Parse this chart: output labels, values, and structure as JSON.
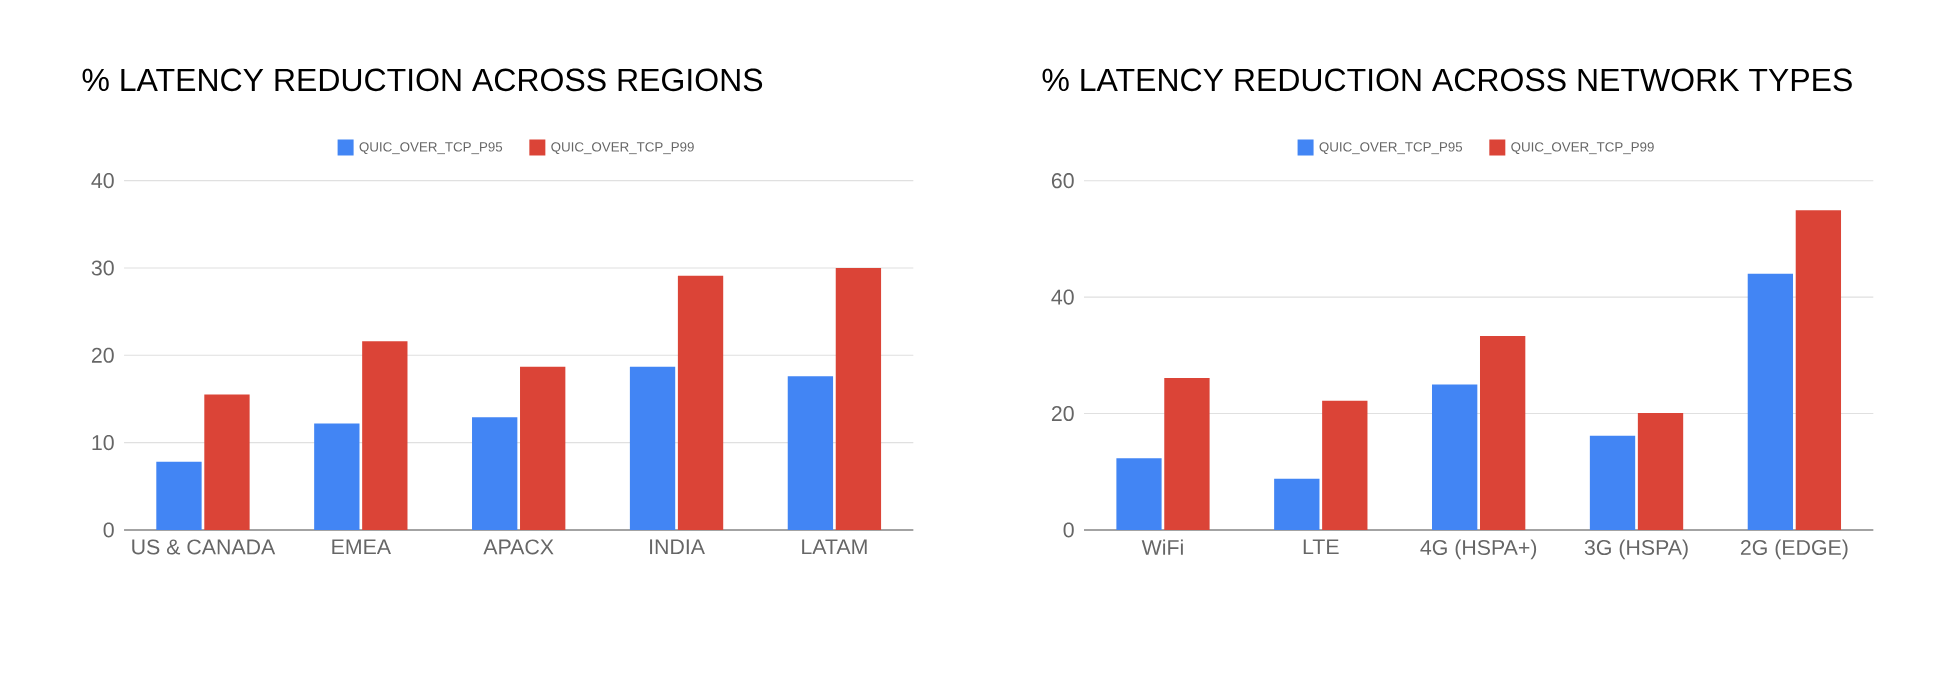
{
  "chart_data": [
    {
      "type": "bar",
      "title": "% LATENCY REDUCTION ACROSS REGIONS",
      "categories": [
        "US & CANADA",
        "EMEA",
        "APACX",
        "INDIA",
        "LATAM"
      ],
      "series": [
        {
          "name": "QUIC_OVER_TCP_P95",
          "color": "#4285f4",
          "values": [
            7.8,
            12.2,
            12.9,
            18.7,
            17.6
          ]
        },
        {
          "name": "QUIC_OVER_TCP_P99",
          "color": "#db4437",
          "values": [
            15.5,
            21.6,
            18.7,
            29.1,
            30.0
          ]
        }
      ],
      "ylim": [
        0,
        40
      ],
      "yticks": [
        0,
        10,
        20,
        30,
        40
      ],
      "grid": "y",
      "legend": "top"
    },
    {
      "type": "bar",
      "title": "% LATENCY REDUCTION ACROSS NETWORK TYPES",
      "categories": [
        "WiFi",
        "LTE",
        "4G (HSPA+)",
        "3G (HSPA)",
        "2G (EDGE)"
      ],
      "series": [
        {
          "name": "QUIC_OVER_TCP_P95",
          "color": "#4285f4",
          "values": [
            12.3,
            8.8,
            25.0,
            16.2,
            44.0
          ]
        },
        {
          "name": "QUIC_OVER_TCP_P99",
          "color": "#db4437",
          "values": [
            26.1,
            22.2,
            33.3,
            20.1,
            54.9
          ]
        }
      ],
      "ylim": [
        0,
        60
      ],
      "yticks": [
        0,
        20,
        40,
        60
      ],
      "grid": "y",
      "legend": "top"
    }
  ]
}
